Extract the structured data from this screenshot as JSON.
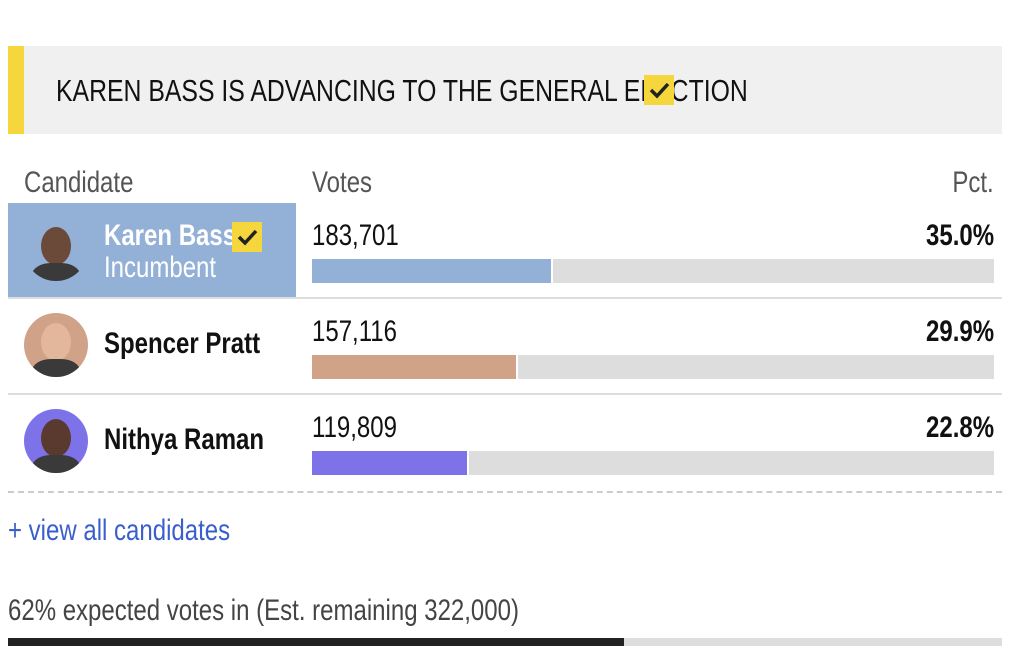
{
  "banner": {
    "text": "KAREN BASS IS ADVANCING TO THE GENERAL ELECTION"
  },
  "table": {
    "headers": {
      "candidate": "Candidate",
      "votes": "Votes",
      "pct": "Pct."
    },
    "rows": [
      {
        "name": "Karen Bass",
        "subtitle": "Incumbent",
        "winner": true,
        "votes": "183,701",
        "pct": {
          "value": 35.0,
          "label": "35.0%"
        },
        "color": "#93b0d6",
        "photo_color": "#6b4a3a"
      },
      {
        "name": "Spencer Pratt",
        "winner": false,
        "votes": "157,116",
        "pct": {
          "value": 29.9,
          "label": "29.9%"
        },
        "color": "#d0a388",
        "photo_color": "#e2b79c"
      },
      {
        "name": "Nithya Raman",
        "winner": false,
        "votes": "119,809",
        "pct": {
          "value": 22.8,
          "label": "22.8%"
        },
        "color": "#7d72e8",
        "photo_color": "#5a3a2e"
      }
    ]
  },
  "link": "+ view all candidates",
  "expected": {
    "text": "62% expected votes in (Est. remaining 322,000)",
    "value": 62
  }
}
